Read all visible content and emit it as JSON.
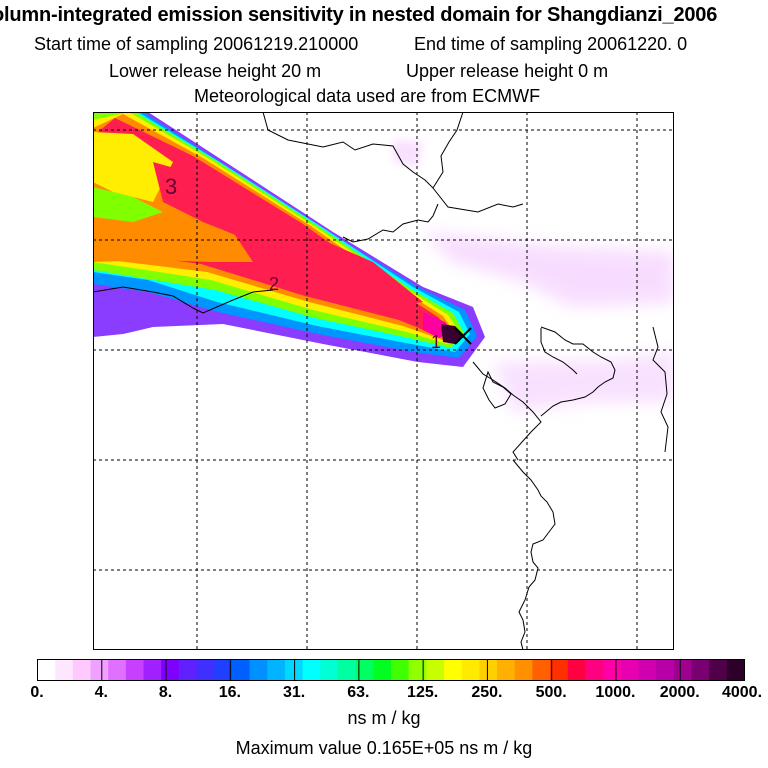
{
  "header": {
    "title": "olumn-integrated emission sensitivity in nested domain for Shangdianzi_2006",
    "start_label": "Start time of sampling 20061219.210000",
    "end_label": "End time of sampling 20061220.     0",
    "lower_label": "Lower release height   20 m",
    "upper_label": "Upper release height    0 m",
    "met_label": "Meteorological data used are from ECMWF"
  },
  "map": {
    "contour_labels": [
      "3",
      "2",
      "1"
    ],
    "receptor_marker": "Shangdianzi receptor"
  },
  "legend": {
    "ticks": [
      "0.",
      "4.",
      "8.",
      "16.",
      "31.",
      "63.",
      "125.",
      "250.",
      "500.",
      "1000.",
      "2000.",
      "4000."
    ],
    "colors": [
      "#ffffff",
      "#ffe6ff",
      "#ffc8ff",
      "#f0a0ff",
      "#e070ff",
      "#c840ff",
      "#a020ff",
      "#7f00ff",
      "#6020ff",
      "#4030ff",
      "#2040ff",
      "#0060ff",
      "#0090ff",
      "#00b4ff",
      "#00d8ff",
      "#00ffff",
      "#00ffd2",
      "#00ffa0",
      "#00ff60",
      "#00ff20",
      "#40ff00",
      "#90ff00",
      "#c8ff00",
      "#ffff00",
      "#ffea00",
      "#ffd000",
      "#ffb000",
      "#ff9000",
      "#ff6000",
      "#ff3000",
      "#ff0040",
      "#ff0080",
      "#ff00a8",
      "#e800b0",
      "#d000b0",
      "#b800a8",
      "#a00090",
      "#780070",
      "#500048",
      "#2c0028"
    ],
    "units": "ns m / kg",
    "max_value": "Maximum value  0.165E+05 ns m / kg"
  }
}
